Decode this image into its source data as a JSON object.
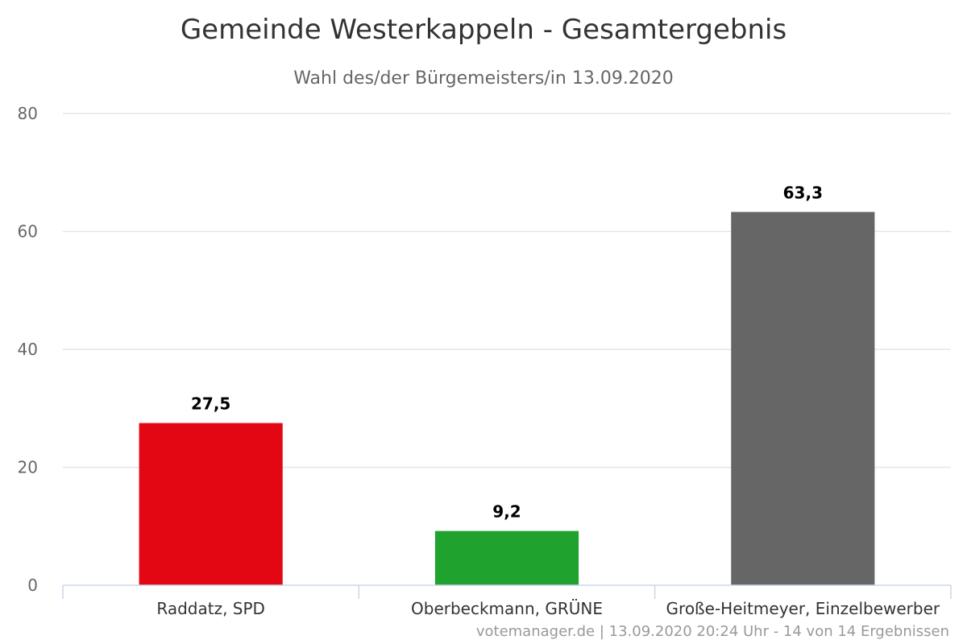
{
  "chart_data": {
    "type": "bar",
    "title": "Gemeinde Westerkappeln - Gesamtergebnis",
    "subtitle": "Wahl des/der Bürgemeisters/in 13.09.2020",
    "categories": [
      "Raddatz, SPD",
      "Oberbeckmann, GRÜNE",
      "Große-Heitmeyer, Einzelbewerber"
    ],
    "values": [
      27.5,
      9.2,
      63.3
    ],
    "data_labels": [
      "27,5",
      "9,2",
      "63,3"
    ],
    "bar_colors": [
      "#e30613",
      "#1fa22e",
      "#666666"
    ],
    "xlabel": "",
    "ylabel": "",
    "ylim": [
      0,
      80
    ],
    "yticks": [
      0,
      20,
      40,
      60,
      80
    ],
    "grid": true,
    "credit": "votemanager.de | 13.09.2020 20:24 Uhr - 14 von 14 Ergebnissen"
  },
  "colors": {
    "grid": "#e6e6e6",
    "axis": "#ccd6eb"
  }
}
